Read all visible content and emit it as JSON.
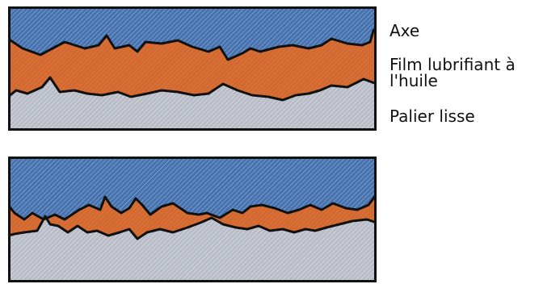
{
  "labels": {
    "axe": "Axe",
    "film": "Film lubrifiant à l'huile",
    "palier": "Palier lisse"
  },
  "colors": {
    "axe_fill": "#4673b0",
    "film_fill": "#d4692f",
    "palier_fill": "#b8bcc6",
    "outline": "#111111",
    "hatch": "#ffffff"
  }
}
